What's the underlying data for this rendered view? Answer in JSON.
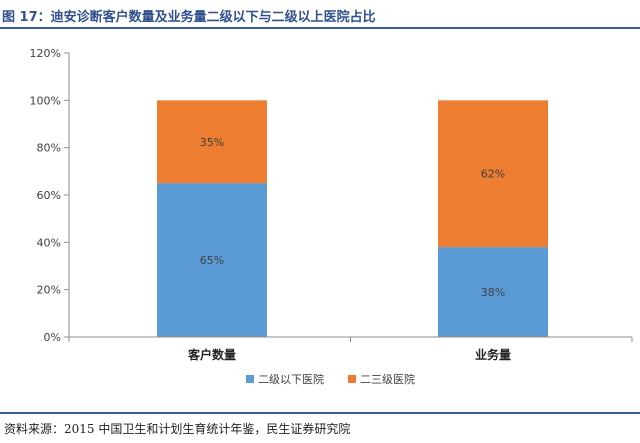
{
  "figure_title": "图 17：迪安诊断客户数量及业务量二级以下与二级以上医院占比",
  "source_note": "资料来源：2015 中国卫生和计划生育统计年鉴，民生证券研究院",
  "chart_data": {
    "type": "bar",
    "stacked": true,
    "categories": [
      "客户数量",
      "业务量"
    ],
    "series": [
      {
        "name": "二级以下医院",
        "values": [
          65,
          38
        ],
        "labels": [
          "65%",
          "38%"
        ],
        "color": "#5b9bd5"
      },
      {
        "name": "二三级医院",
        "values": [
          35,
          62
        ],
        "labels": [
          "35%",
          "62%"
        ],
        "color": "#ed7d31"
      }
    ],
    "ylim": [
      0,
      120
    ],
    "yticks": [
      "0%",
      "20%",
      "40%",
      "60%",
      "80%",
      "100%",
      "120%"
    ],
    "ytick_values": [
      0,
      20,
      40,
      60,
      80,
      100,
      120
    ],
    "grid": false,
    "legend": "bottom"
  }
}
